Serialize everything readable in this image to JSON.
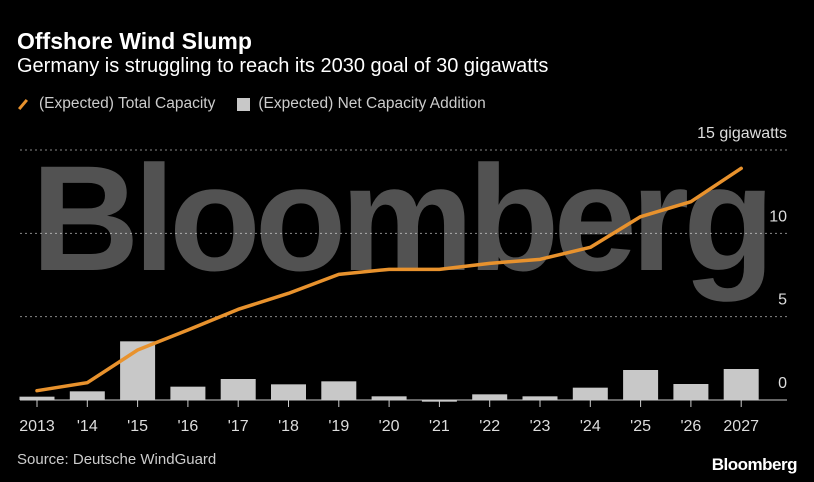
{
  "title": "Offshore Wind Slump",
  "subtitle": "Germany is struggling to reach its 2030 goal of 30 gigawatts",
  "source": "Source: Deutsche WindGuard",
  "brand": "Bloomberg",
  "watermark": "Bloomberg",
  "colors": {
    "line": "#e8922d",
    "bars": "#c8c8c8",
    "background": "#000000"
  },
  "chart_data": {
    "type": "bar+line",
    "categories": [
      "2013",
      "'14",
      "'15",
      "'16",
      "'17",
      "'18",
      "'19",
      "'20",
      "'21",
      "'22",
      "'23",
      "'24",
      "'25",
      "'26",
      "2027"
    ],
    "series": [
      {
        "name": "(Expected) Total Capacity",
        "type": "line",
        "values": [
          0.56,
          1.04,
          3.0,
          4.2,
          5.44,
          6.4,
          7.54,
          7.84,
          7.84,
          8.2,
          8.44,
          9.16,
          11.0,
          11.9,
          13.9
        ]
      },
      {
        "name": "(Expected) Net Capacity Addition",
        "type": "bar",
        "values": [
          0.2,
          0.52,
          3.52,
          0.8,
          1.26,
          0.94,
          1.12,
          0.22,
          -0.1,
          0.34,
          0.22,
          0.74,
          1.8,
          0.96,
          1.86
        ]
      }
    ],
    "yticks": [
      {
        "value": 0,
        "label": "0"
      },
      {
        "value": 5,
        "label": "5"
      },
      {
        "value": 10,
        "label": "10"
      },
      {
        "value": 15,
        "label": "15 gigawatts"
      }
    ],
    "ylim": [
      0,
      15
    ],
    "grid": true,
    "legend": "top-left"
  }
}
